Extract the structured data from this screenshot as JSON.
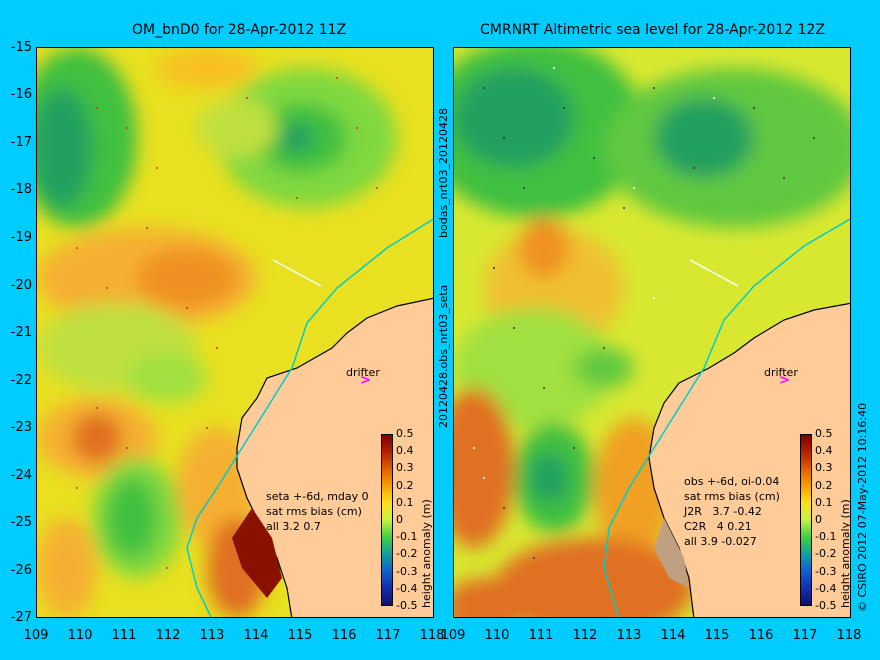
{
  "left_panel": {
    "title": "OM_bnD0 for 28-Apr-2012 11Z",
    "stats_text": "seta +-6d, mday 0\nsat rms bias (cm)\nall 3.2 0.7",
    "drifter_label": "drifter",
    "drifter_icon": "arrow-marker-icon",
    "side_label": "20120428.obs_nrt03_seta",
    "side_label_top": "bodas_nrt03_20120428"
  },
  "right_panel": {
    "title": "CMRNRT Altimetric sea level  for 28-Apr-2012 12Z",
    "stats_text": "obs +-6d, oi-0.04\nsat rms bias (cm)\nJ2R   3.7 -0.42\nC2R   4 0.21\nall 3.9 -0.027",
    "drifter_label": "drifter",
    "drifter_icon": "arrow-marker-icon",
    "side_label": "© CSIRO 2012   07-May-2012 10:16:40"
  },
  "axes": {
    "lat_ticks": [
      "-15",
      "-16",
      "-17",
      "-18",
      "-19",
      "-20",
      "-21",
      "-22",
      "-23",
      "-24",
      "-25",
      "-26",
      "-27"
    ],
    "lon_ticks": [
      "109",
      "110",
      "111",
      "112",
      "113",
      "114",
      "115",
      "116",
      "117",
      "118"
    ],
    "lat_range": [
      -27,
      -15
    ],
    "lon_range": [
      109,
      118
    ]
  },
  "colorbar": {
    "ticks": [
      "0.5",
      "0.4",
      "0.3",
      "0.2",
      "0.1",
      "0",
      "-0.1",
      "-0.2",
      "-0.3",
      "-0.4",
      "-0.5"
    ],
    "label": "height anomaly (m)",
    "range": [
      -0.5,
      0.5
    ]
  },
  "colors": {
    "background": "#00ccff",
    "land": "#ffcc99",
    "coastline_track": "#00cccc",
    "drifter": "#ff00ff"
  }
}
